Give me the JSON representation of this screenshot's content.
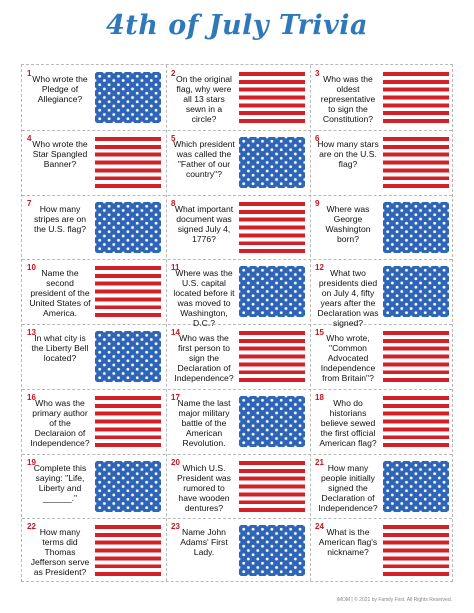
{
  "title": "4th of July Trivia",
  "colors": {
    "title": "#2f78ba",
    "number": "#c8141a",
    "flag_red": "#d42128",
    "flag_blue": "#2f65b6"
  },
  "cards": [
    {
      "num": "1",
      "question": "Who wrote the Pledge of Allegiance?",
      "flag": "stars"
    },
    {
      "num": "2",
      "question": "On the original flag, why were all 13 stars sewn in a circle?",
      "flag": "stripes"
    },
    {
      "num": "3",
      "question": "Who was the oldest representative to sign the Constitution?",
      "flag": "stripes"
    },
    {
      "num": "4",
      "question": "Who wrote the Star Spangled Banner?",
      "flag": "stripes"
    },
    {
      "num": "5",
      "question": "Which president was called the \"Father of our country\"?",
      "flag": "stars"
    },
    {
      "num": "6",
      "question": "How many stars are on the U.S. flag?",
      "flag": "stripes"
    },
    {
      "num": "7",
      "question": "How many stripes are on the U.S. flag?",
      "flag": "stars"
    },
    {
      "num": "8",
      "question": "What important document was signed July 4, 1776?",
      "flag": "stripes"
    },
    {
      "num": "9",
      "question": "Where was George Washington born?",
      "flag": "stars"
    },
    {
      "num": "10",
      "question": "Name the second president of the United States of America.",
      "flag": "stripes"
    },
    {
      "num": "11",
      "question": "Where was the U.S. capital located before it was moved to Washington, D.C.?",
      "flag": "stars"
    },
    {
      "num": "12",
      "question": "What two presidents died on July 4, fifty years after the Declaration was signed?",
      "flag": "stars"
    },
    {
      "num": "13",
      "question": "In what city is the Liberty Bell located?",
      "flag": "stars"
    },
    {
      "num": "14",
      "question": "Who was the first person to sign the Declaration of Independence?",
      "flag": "stripes"
    },
    {
      "num": "15",
      "question": "Who wrote, \"Common Advocated Independence from Britain\"?",
      "flag": "stripes"
    },
    {
      "num": "16",
      "question": "Who was the primary author of the Declaraion of Independence?",
      "flag": "stripes"
    },
    {
      "num": "17",
      "question": "Name the last major military battle of the American Revolution.",
      "flag": "stars"
    },
    {
      "num": "18",
      "question": "Who do historians believe sewed the first official American flag?",
      "flag": "stripes"
    },
    {
      "num": "19",
      "question": "Complete this saying: \"Life, Liberty and ______.\"",
      "flag": "stars"
    },
    {
      "num": "20",
      "question": "Which U.S. President was rumored to have wooden dentures?",
      "flag": "stripes"
    },
    {
      "num": "21",
      "question": "How many people initially signed the Declaration of Independence?",
      "flag": "stars"
    },
    {
      "num": "22",
      "question": "How many terms did Thomas Jefferson serve as President?",
      "flag": "stripes"
    },
    {
      "num": "23",
      "question": "Name John Adams' First Lady.",
      "flag": "stars"
    },
    {
      "num": "24",
      "question": "What is the American flag's nickname?",
      "flag": "stripes"
    }
  ],
  "footer": "iMOM | © 2021 by Family First. All Rights Reserved."
}
